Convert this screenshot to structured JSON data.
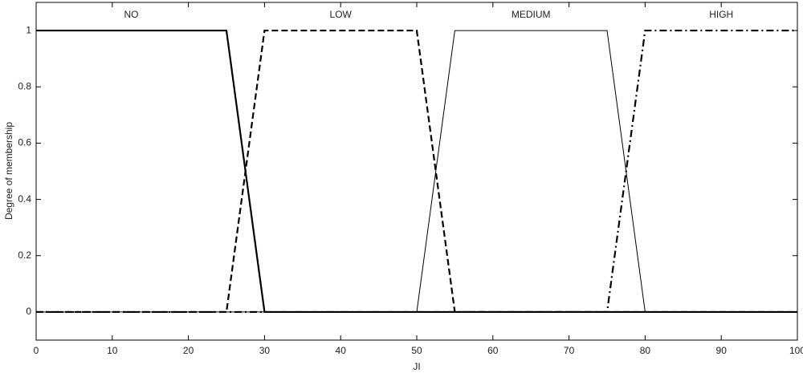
{
  "chart_data": {
    "type": "line",
    "xlabel": "JI",
    "ylabel": "Degree of membership",
    "xlim": [
      0,
      100
    ],
    "ylim": [
      -0.1,
      1.1
    ],
    "xticks": [
      0,
      10,
      20,
      30,
      40,
      50,
      60,
      70,
      80,
      90,
      100
    ],
    "yticks": [
      0,
      0.2,
      0.4,
      0.6,
      0.8,
      1
    ],
    "grid": false,
    "series": [
      {
        "name": "NO",
        "color": "#000000",
        "linestyle": "solid",
        "linewidth": 2.2,
        "x": [
          0,
          25,
          30,
          100
        ],
        "values": [
          1,
          1,
          0,
          0
        ]
      },
      {
        "name": "LOW",
        "color": "#000000",
        "linestyle": "dashed",
        "linewidth": 2.2,
        "x": [
          0,
          25,
          30,
          50,
          55,
          100
        ],
        "values": [
          0,
          0,
          1,
          1,
          0,
          0
        ]
      },
      {
        "name": "MEDIUM",
        "color": "#000000",
        "linestyle": "solid",
        "linewidth": 1,
        "x": [
          0,
          50,
          55,
          75,
          80,
          100
        ],
        "values": [
          0,
          0,
          1,
          1,
          0,
          0
        ]
      },
      {
        "name": "HIGH",
        "color": "#000000",
        "linestyle": "dashdot",
        "linewidth": 2.2,
        "x": [
          0,
          75,
          80,
          100
        ],
        "values": [
          0,
          0,
          1,
          1
        ]
      }
    ]
  }
}
